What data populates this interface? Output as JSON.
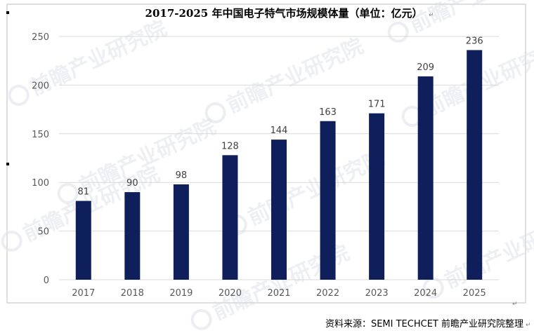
{
  "chart_data": {
    "type": "bar",
    "title": "2017-2025 年中国电子特气市场规模体量（单位：亿元）",
    "categories": [
      "2017",
      "2018",
      "2019",
      "2020",
      "2021",
      "2022",
      "2023",
      "2024",
      "2025"
    ],
    "values": [
      81,
      90,
      98,
      128,
      144,
      163,
      171,
      209,
      236
    ],
    "ylim": [
      0,
      250
    ],
    "yticks": [
      0,
      50,
      100,
      150,
      200,
      250
    ],
    "grid": true,
    "bar_color": "#0e1f5b",
    "source": "资料来源：SEMI TECHCET 前瞻产业研究院整理"
  },
  "watermark": "前瞻产业研究院"
}
